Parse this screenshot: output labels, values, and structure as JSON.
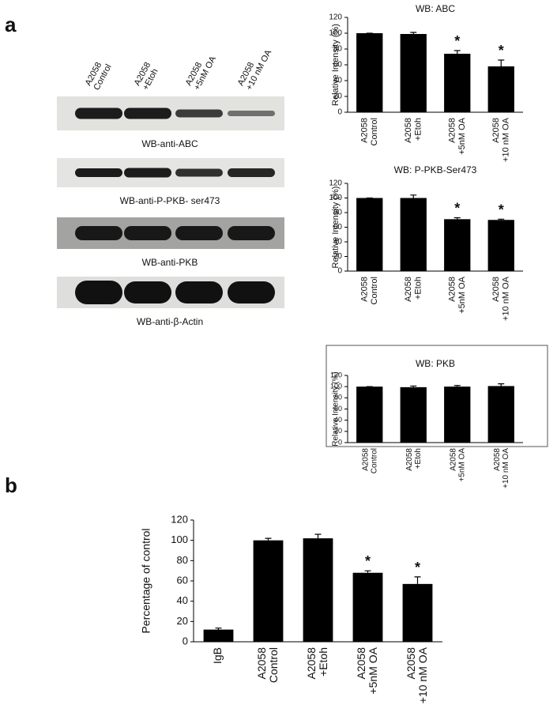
{
  "figure": {
    "panel_labels": [
      "a",
      "b"
    ],
    "lanes": [
      "A2058\nControl",
      "A2058\n+Etoh",
      "A2058\n+5nM OA",
      "A2058\n+10 nM OA"
    ],
    "blots": [
      "WB-anti-ABC",
      "WB-anti-P-PKB- ser473",
      "WB-anti-PKB",
      "WB-anti-β-Actin"
    ]
  },
  "chart_data": [
    {
      "type": "bar",
      "title": "WB: ABC",
      "y_label": "Relative Intensity (%)",
      "categories": [
        "A2058\nControl",
        "A2058\n+Etoh",
        "A2058\n+5nM OA",
        "A2058\n+10 nM OA"
      ],
      "values": [
        100,
        99,
        74,
        58
      ],
      "errors": [
        0,
        2,
        4,
        8
      ],
      "significance": [
        null,
        null,
        "*",
        "*"
      ],
      "color": "#000000",
      "ylim": [
        0,
        120
      ],
      "yticks": [
        0,
        20,
        40,
        60,
        80,
        100,
        120
      ]
    },
    {
      "type": "bar",
      "title": "WB: P-PKB-Ser473",
      "y_label": "Relative Intensity (%)",
      "categories": [
        "A2058\nControl",
        "A2058\n+Etoh",
        "A2058\n+5nM OA",
        "A2058\n+10 nM OA"
      ],
      "values": [
        100,
        100,
        71,
        70
      ],
      "errors": [
        0,
        4,
        2,
        1
      ],
      "significance": [
        null,
        null,
        "*",
        "*"
      ],
      "color": "#000000",
      "ylim": [
        0,
        120
      ],
      "yticks": [
        0,
        20,
        40,
        60,
        80,
        100,
        120
      ]
    },
    {
      "type": "bar",
      "title": "WB: PKB",
      "y_label": "Relative Intensity (%)",
      "categories": [
        "A2058\nControl",
        "A2058\n+Etoh",
        "A2058\n+5nM OA",
        "A2058\n+10 nM OA"
      ],
      "values": [
        100,
        99,
        100,
        101
      ],
      "errors": [
        0,
        2,
        2,
        4
      ],
      "color": "#000000",
      "ylim": [
        0,
        120
      ],
      "yticks": [
        0,
        20,
        40,
        60,
        80,
        100,
        120
      ]
    },
    {
      "type": "bar",
      "y_label": "Percentage of control",
      "categories": [
        "IgB",
        "A2058\nControl",
        "A2058\n+Etoh",
        "A2058\n+5nM OA",
        "A2058\n+10 nM OA"
      ],
      "values": [
        12,
        100,
        102,
        68,
        57
      ],
      "errors": [
        1.5,
        2,
        4,
        2,
        7
      ],
      "significance": [
        null,
        null,
        null,
        "*",
        "*"
      ],
      "color": "#000000",
      "ylim": [
        0,
        120
      ],
      "yticks": [
        0,
        20,
        40,
        60,
        80,
        100,
        120
      ]
    }
  ]
}
